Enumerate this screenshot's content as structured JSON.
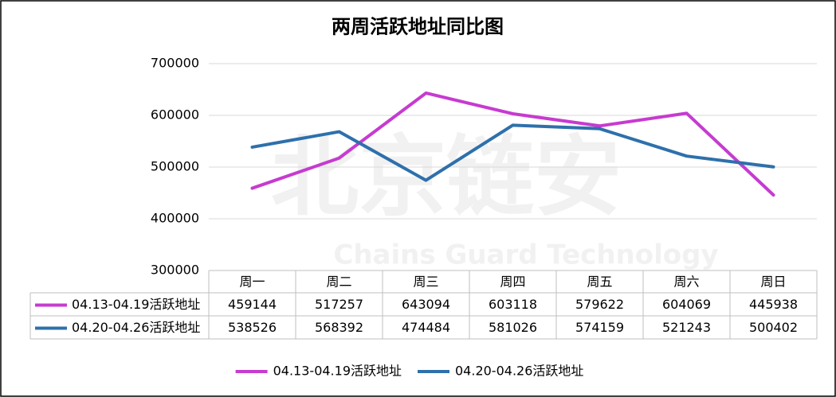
{
  "chart_data": {
    "type": "line",
    "title": "两周活跃地址同比图",
    "watermark": "北京链安",
    "watermark_subtitle": "Chains Guard Technology",
    "categories": [
      "周一",
      "周二",
      "周三",
      "周四",
      "周五",
      "周六",
      "周日"
    ],
    "series": [
      {
        "name": "04.13-04.19活跃地址",
        "color": "#c63bd0",
        "values": [
          459144,
          517257,
          643094,
          603118,
          579622,
          604069,
          445938
        ]
      },
      {
        "name": "04.20-04.26活跃地址",
        "color": "#2e70ab",
        "values": [
          538526,
          568392,
          474484,
          581026,
          574159,
          521243,
          500402
        ]
      }
    ],
    "ylim": [
      300000,
      700000
    ],
    "yticks": [
      300000,
      400000,
      500000,
      600000,
      700000
    ],
    "grid": true,
    "legend": "bottom",
    "data_table": true
  }
}
